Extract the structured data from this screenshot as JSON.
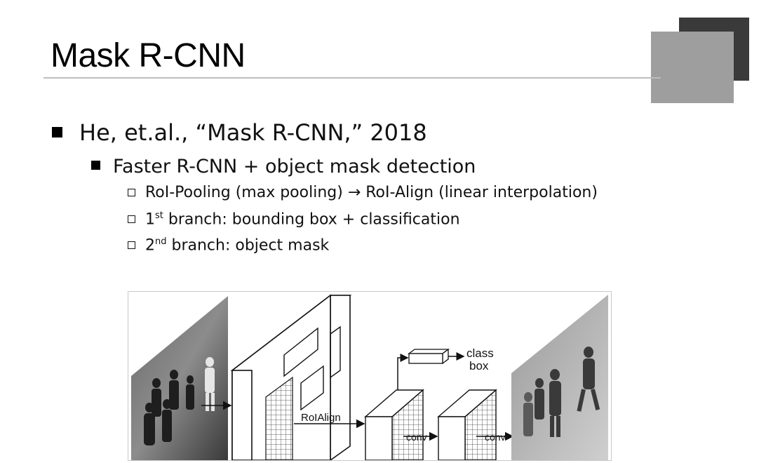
{
  "slide": {
    "title": "Mask R-CNN"
  },
  "bullets": {
    "level1": "He, et.al., “Mask R-CNN,” 2018",
    "level2": "Faster R-CNN + object mask detection",
    "level3": [
      {
        "text": "RoI-Pooling (max pooling) → RoI-Align (linear interpolation)"
      },
      {
        "pre": "1",
        "sup": "st",
        "post": " branch: bounding box + classification"
      },
      {
        "pre": "2",
        "sup": "nd",
        "post": " branch: object mask"
      }
    ]
  },
  "figure": {
    "labels": {
      "class": "class",
      "box": "box",
      "roialign": "RoIAlign",
      "conv1": "conv",
      "conv2": "conv"
    }
  },
  "colors": {
    "deco_dark": "#3a3a3a",
    "deco_light": "#9e9e9e",
    "rule": "#bdbdbd"
  }
}
